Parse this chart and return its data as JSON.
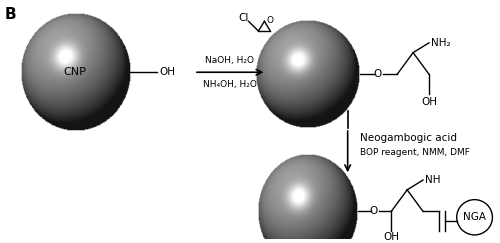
{
  "bg_color": "#ffffff",
  "fig_width": 5.0,
  "fig_height": 2.43,
  "dpi": 100,
  "cnp1_label": "CNP",
  "nga_label": "NGA",
  "font_size_label": 7.5,
  "font_size_small": 6.5,
  "font_size_cnp": 8,
  "font_size_b": 11,
  "reagent1_line2": "NaOH, H₂O",
  "reagent1_line3": "NH₄OH, H₂O",
  "reagent2_line1": "Neogambogic acid",
  "reagent2_line2": "BOP reagent, NMM, DMF"
}
